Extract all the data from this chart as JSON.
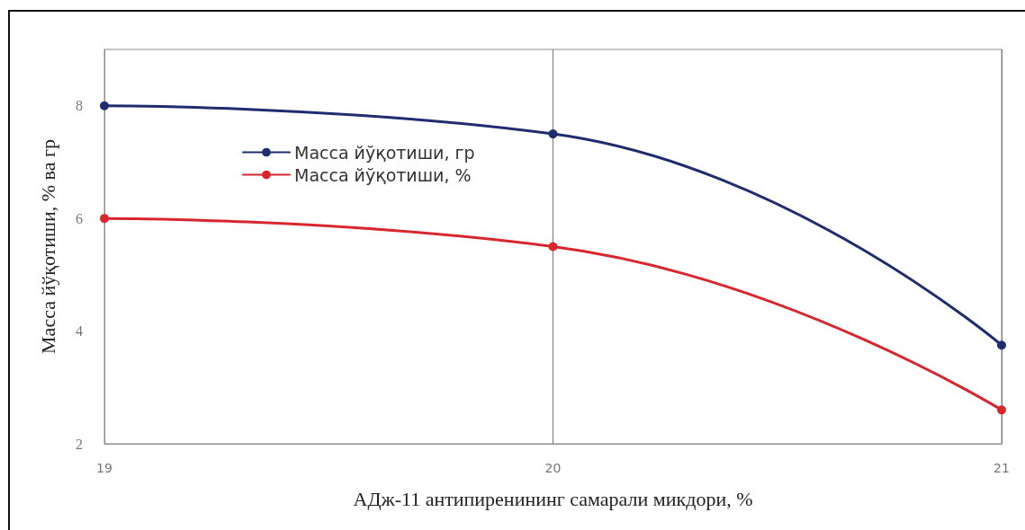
{
  "chart_data": {
    "type": "line",
    "xlabel": "АДж-11 антипиренининг самарали микдори, %",
    "ylabel": "Масса йўқотиши, % ва гр",
    "x": [
      19,
      20,
      21
    ],
    "series": [
      {
        "name": "Масса йўқотиши, гр",
        "color": "#1f2d6e",
        "values": [
          8.0,
          7.5,
          3.75
        ]
      },
      {
        "name": "Масса йўқотиши, %",
        "color": "#d9262e",
        "values": [
          6.0,
          5.5,
          2.6
        ]
      }
    ],
    "xlim": [
      19,
      21
    ],
    "xticks": [
      19,
      20,
      21
    ],
    "ylim": [
      2,
      9
    ],
    "yticks": [
      2,
      4,
      6,
      8
    ],
    "grid": "x",
    "legend": "left",
    "marker": "circle"
  }
}
